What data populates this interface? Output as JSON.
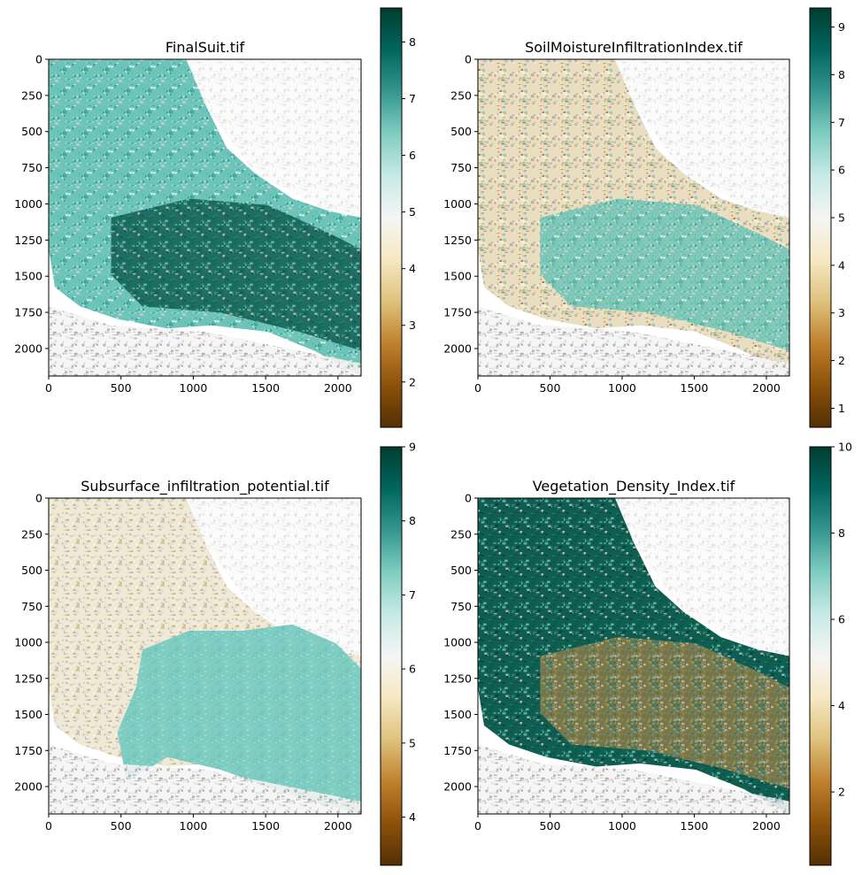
{
  "chart_data": [
    {
      "type": "heatmap",
      "title": "FinalSuit.tif",
      "colormap": "BrBG",
      "xticks": [
        0,
        500,
        1000,
        1500,
        2000
      ],
      "yticks": [
        0,
        250,
        500,
        750,
        1000,
        1250,
        1500,
        1750,
        2000
      ],
      "xlim": [
        0,
        2160
      ],
      "ylim": [
        2190,
        0
      ],
      "colorbar": {
        "ticks": [
          2,
          3,
          4,
          5,
          6,
          7,
          8
        ],
        "range": [
          1.2,
          8.6
        ]
      }
    },
    {
      "type": "heatmap",
      "title": "SoilMoistureInfiltrationIndex.tif",
      "colormap": "BrBG",
      "xticks": [
        0,
        500,
        1000,
        1500,
        2000
      ],
      "yticks": [
        0,
        250,
        500,
        750,
        1000,
        1250,
        1500,
        1750,
        2000
      ],
      "xlim": [
        0,
        2160
      ],
      "ylim": [
        2190,
        0
      ],
      "colorbar": {
        "ticks": [
          1,
          2,
          3,
          4,
          5,
          6,
          7,
          8,
          9
        ],
        "range": [
          0.6,
          9.4
        ]
      }
    },
    {
      "type": "heatmap",
      "title": "Subsurface_infiltration_potential.tif",
      "colormap": "BrBG",
      "xticks": [
        0,
        500,
        1000,
        1500,
        2000
      ],
      "yticks": [
        0,
        250,
        500,
        750,
        1000,
        1250,
        1500,
        1750,
        2000
      ],
      "xlim": [
        0,
        2160
      ],
      "ylim": [
        2190,
        0
      ],
      "colorbar": {
        "ticks": [
          4,
          5,
          6,
          7,
          8,
          9
        ],
        "range": [
          3.35,
          9
        ]
      }
    },
    {
      "type": "heatmap",
      "title": "Vegetation_Density_Index.tif",
      "colormap": "BrBG",
      "xticks": [
        0,
        500,
        1000,
        1500,
        2000
      ],
      "yticks": [
        0,
        250,
        500,
        750,
        1000,
        1250,
        1500,
        1750,
        2000
      ],
      "xlim": [
        0,
        2160
      ],
      "ylim": [
        2190,
        0
      ],
      "colorbar": {
        "ticks": [
          2,
          4,
          6,
          8,
          10
        ],
        "range": [
          0.3,
          10
        ]
      }
    }
  ]
}
